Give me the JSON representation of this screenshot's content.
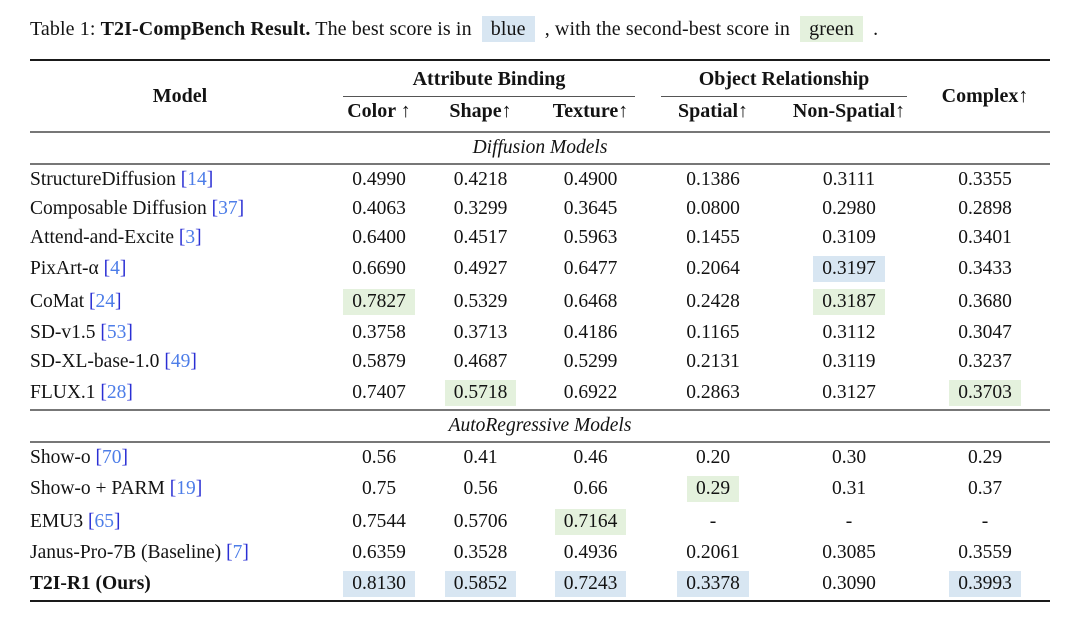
{
  "caption": {
    "label": "Table 1:",
    "title": "T2I-CompBench Result.",
    "text_before_blue": "The best score is in",
    "blue_word": "blue",
    "text_between": ", with the second-best score in",
    "green_word": "green",
    "text_end": "."
  },
  "colors": {
    "best_highlight": "#d8e6f2",
    "second_highlight": "#e4f1dd",
    "cite_bracket": "#2a2fd4",
    "cite_number": "#4d7de8"
  },
  "table": {
    "header": {
      "model": "Model",
      "groups": [
        {
          "label": "Attribute Binding",
          "span": 3
        },
        {
          "label": "Object Relationship",
          "span": 2
        }
      ],
      "complex": "Complex↑",
      "subcolumns": [
        "Color ↑",
        "Shape↑",
        "Texture↑",
        "Spatial↑",
        "Non-Spatial↑"
      ]
    },
    "sections": [
      {
        "label": "Diffusion Models",
        "rows": [
          {
            "model": "StructureDiffusion",
            "cite": "14",
            "bold": false,
            "values": [
              "0.4990",
              "0.4218",
              "0.4900",
              "0.1386",
              "0.3111",
              "0.3355"
            ],
            "hl": [
              "",
              "",
              "",
              "",
              "",
              ""
            ]
          },
          {
            "model": "Composable Diffusion",
            "cite": "37",
            "bold": false,
            "values": [
              "0.4063",
              "0.3299",
              "0.3645",
              "0.0800",
              "0.2980",
              "0.2898"
            ],
            "hl": [
              "",
              "",
              "",
              "",
              "",
              ""
            ]
          },
          {
            "model": "Attend-and-Excite",
            "cite": "3",
            "bold": false,
            "values": [
              "0.6400",
              "0.4517",
              "0.5963",
              "0.1455",
              "0.3109",
              "0.3401"
            ],
            "hl": [
              "",
              "",
              "",
              "",
              "",
              ""
            ]
          },
          {
            "model": "PixArt-α",
            "cite": "4",
            "bold": false,
            "values": [
              "0.6690",
              "0.4927",
              "0.6477",
              "0.2064",
              "0.3197",
              "0.3433"
            ],
            "hl": [
              "",
              "",
              "",
              "",
              "blue",
              ""
            ]
          },
          {
            "model": "CoMat",
            "cite": "24",
            "bold": false,
            "values": [
              "0.7827",
              "0.5329",
              "0.6468",
              "0.2428",
              "0.3187",
              "0.3680"
            ],
            "hl": [
              "green",
              "",
              "",
              "",
              "green",
              ""
            ]
          },
          {
            "model": "SD-v1.5",
            "cite": "53",
            "bold": false,
            "values": [
              "0.3758",
              "0.3713",
              "0.4186",
              "0.1165",
              "0.3112",
              "0.3047"
            ],
            "hl": [
              "",
              "",
              "",
              "",
              "",
              ""
            ]
          },
          {
            "model": "SD-XL-base-1.0",
            "cite": "49",
            "bold": false,
            "values": [
              "0.5879",
              "0.4687",
              "0.5299",
              "0.2131",
              "0.3119",
              "0.3237"
            ],
            "hl": [
              "",
              "",
              "",
              "",
              "",
              ""
            ]
          },
          {
            "model": "FLUX.1",
            "cite": "28",
            "bold": false,
            "values": [
              "0.7407",
              "0.5718",
              "0.6922",
              "0.2863",
              "0.3127",
              "0.3703"
            ],
            "hl": [
              "",
              "green",
              "",
              "",
              "",
              "green"
            ]
          }
        ]
      },
      {
        "label": "AutoRegressive Models",
        "rows": [
          {
            "model": "Show-o",
            "cite": "70",
            "bold": false,
            "values": [
              "0.56",
              "0.41",
              "0.46",
              "0.20",
              "0.30",
              "0.29"
            ],
            "hl": [
              "",
              "",
              "",
              "",
              "",
              ""
            ]
          },
          {
            "model": "Show-o + PARM",
            "cite": "19",
            "bold": false,
            "values": [
              "0.75",
              "0.56",
              "0.66",
              "0.29",
              "0.31",
              "0.37"
            ],
            "hl": [
              "",
              "",
              "",
              "green",
              "",
              ""
            ]
          },
          {
            "model": "EMU3",
            "cite": "65",
            "bold": false,
            "values": [
              "0.7544",
              "0.5706",
              "0.7164",
              "-",
              "-",
              "-"
            ],
            "hl": [
              "",
              "",
              "green",
              "",
              "",
              ""
            ]
          },
          {
            "model": "Janus-Pro-7B (Baseline)",
            "cite": "7",
            "bold": false,
            "values": [
              "0.6359",
              "0.3528",
              "0.4936",
              "0.2061",
              "0.3085",
              "0.3559"
            ],
            "hl": [
              "",
              "",
              "",
              "",
              "",
              ""
            ]
          },
          {
            "model": "T2I-R1 (Ours)",
            "cite": null,
            "bold": true,
            "values": [
              "0.8130",
              "0.5852",
              "0.7243",
              "0.3378",
              "0.3090",
              "0.3993"
            ],
            "hl": [
              "blue",
              "blue",
              "blue",
              "blue",
              "",
              "blue"
            ]
          }
        ]
      }
    ]
  }
}
